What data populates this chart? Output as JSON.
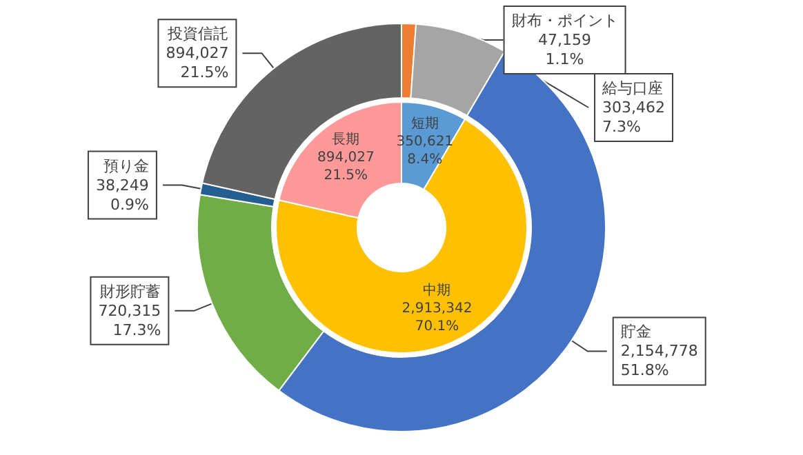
{
  "chart_data": [
    {
      "type": "donut",
      "legend": false,
      "categories": [
        "財布・ポイント",
        "給与口座",
        "貯金",
        "財形貯蓄",
        "預り金",
        "投資信託"
      ],
      "values": [
        47159,
        303462,
        2154778,
        720315,
        38249,
        894027
      ],
      "colors": [
        "#ed7d31",
        "#a5a5a5",
        "#4472c4",
        "#70ad47",
        "#255e91",
        "#636363"
      ],
      "value_labels": [
        "47,159\n1.1%",
        "303,462\n7.3%",
        "2,154,778\n51.8%",
        "720,315\n17.3%",
        "38,249\n0.9%",
        "894,027\n21.5%"
      ]
    },
    {
      "type": "donut",
      "legend": false,
      "categories": [
        "短期",
        "中期",
        "長期"
      ],
      "values": [
        350621,
        2913342,
        894027
      ],
      "colors": [
        "#5b9bd5",
        "#ffc000",
        "#ff9999"
      ],
      "value_labels": [
        "350,621\n8.4%",
        "2,913,342\n70.1%",
        "894,027\n21.5%"
      ]
    }
  ]
}
